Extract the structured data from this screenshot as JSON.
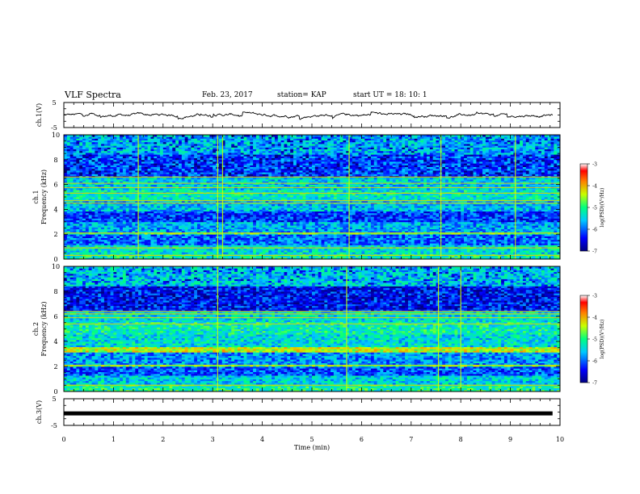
{
  "header": {
    "title": "VLF Spectra",
    "date": "Feb. 23, 2017",
    "station": "station= KAP",
    "start": "start  UT =   18: 10: 1"
  },
  "chart_data": [
    {
      "type": "line",
      "panel": "ch1-waveform",
      "ylabel": "ch.1(V)",
      "ylim": [
        -5,
        5
      ],
      "yticks": [
        "5",
        "-5"
      ],
      "xlim": [
        0,
        10
      ],
      "x_range_data": [
        0,
        9.85
      ],
      "series": [
        {
          "approx_mean": 0.0,
          "approx_range": [
            -1.8,
            1.2
          ],
          "color": "#000000"
        }
      ]
    },
    {
      "type": "heatmap",
      "panel": "ch1-spectrogram",
      "ylabel": "ch.1\nFrequency (kHz)",
      "ylim": [
        0,
        10
      ],
      "yticks": [
        "0",
        "2",
        "4",
        "6",
        "8",
        "10"
      ],
      "xlim": [
        0,
        10
      ],
      "colorbar": {
        "label": "log(PSD)(V²/Hz)",
        "ticks": [
          "-3",
          "-4",
          "-5",
          "-6",
          "-7"
        ],
        "range": [
          -7,
          -3
        ]
      },
      "bands_khz": [
        {
          "f0": 0.0,
          "f1": 0.5,
          "level": -5.2
        },
        {
          "f0": 0.5,
          "f1": 1.2,
          "level": -5.4
        },
        {
          "f0": 1.2,
          "f1": 2.0,
          "level": -6.0
        },
        {
          "f0": 2.0,
          "f1": 2.2,
          "level": -4.9
        },
        {
          "f0": 2.2,
          "f1": 3.0,
          "level": -5.7
        },
        {
          "f0": 3.0,
          "f1": 3.8,
          "level": -6.2
        },
        {
          "f0": 3.8,
          "f1": 4.7,
          "level": -5.6
        },
        {
          "f0": 4.7,
          "f1": 5.6,
          "level": -5.3
        },
        {
          "f0": 5.6,
          "f1": 6.6,
          "level": -5.5
        },
        {
          "f0": 6.6,
          "f1": 8.4,
          "level": -6.1
        },
        {
          "f0": 8.4,
          "f1": 10.0,
          "level": -5.6
        }
      ],
      "lines_khz": [
        0.3,
        0.9,
        2.1,
        4.5,
        4.7,
        5.3,
        5.75,
        6.1,
        6.6
      ],
      "spike_times_min": [
        1.5,
        3.1,
        3.2,
        5.75,
        7.6,
        9.1
      ]
    },
    {
      "type": "heatmap",
      "panel": "ch2-spectrogram",
      "ylabel": "ch.2\nFrequency (kHz)",
      "ylim": [
        0,
        10
      ],
      "yticks": [
        "0",
        "2",
        "4",
        "6",
        "8",
        "10"
      ],
      "xlim": [
        0,
        10
      ],
      "colorbar": {
        "label": "log(PSD)(V²/Hz)",
        "ticks": [
          "-3",
          "-4",
          "-5",
          "-6",
          "-7"
        ],
        "range": [
          -7,
          -3
        ]
      },
      "bands_khz": [
        {
          "f0": 0.0,
          "f1": 0.6,
          "level": -5.1
        },
        {
          "f0": 0.6,
          "f1": 1.3,
          "level": -5.5
        },
        {
          "f0": 1.3,
          "f1": 2.0,
          "level": -6.1
        },
        {
          "f0": 2.0,
          "f1": 2.2,
          "level": -4.8
        },
        {
          "f0": 2.2,
          "f1": 3.2,
          "level": -5.8
        },
        {
          "f0": 3.2,
          "f1": 3.6,
          "level": -4.4
        },
        {
          "f0": 3.6,
          "f1": 4.6,
          "level": -5.4
        },
        {
          "f0": 4.6,
          "f1": 5.6,
          "level": -5.2
        },
        {
          "f0": 5.6,
          "f1": 6.5,
          "level": -5.4
        },
        {
          "f0": 6.5,
          "f1": 8.5,
          "level": -6.3
        },
        {
          "f0": 8.5,
          "f1": 10.0,
          "level": -5.5
        }
      ],
      "lines_khz": [
        0.5,
        2.1,
        3.4,
        5.4,
        5.9,
        6.2,
        6.4
      ],
      "spike_times_min": [
        3.1,
        5.7,
        7.55,
        8.0
      ]
    },
    {
      "type": "line",
      "panel": "ch3-waveform",
      "ylabel": "ch.3(V)",
      "ylim": [
        -5,
        5
      ],
      "yticks": [
        "5",
        "-5"
      ],
      "xlim": [
        0,
        10
      ],
      "xlabel": "Time (min)",
      "xticks": [
        "0",
        "1",
        "2",
        "3",
        "4",
        "5",
        "6",
        "7",
        "8",
        "9",
        "10"
      ],
      "x_range_data": [
        0,
        9.85
      ],
      "series": [
        {
          "value": -0.5,
          "color": "#000000"
        }
      ]
    }
  ]
}
